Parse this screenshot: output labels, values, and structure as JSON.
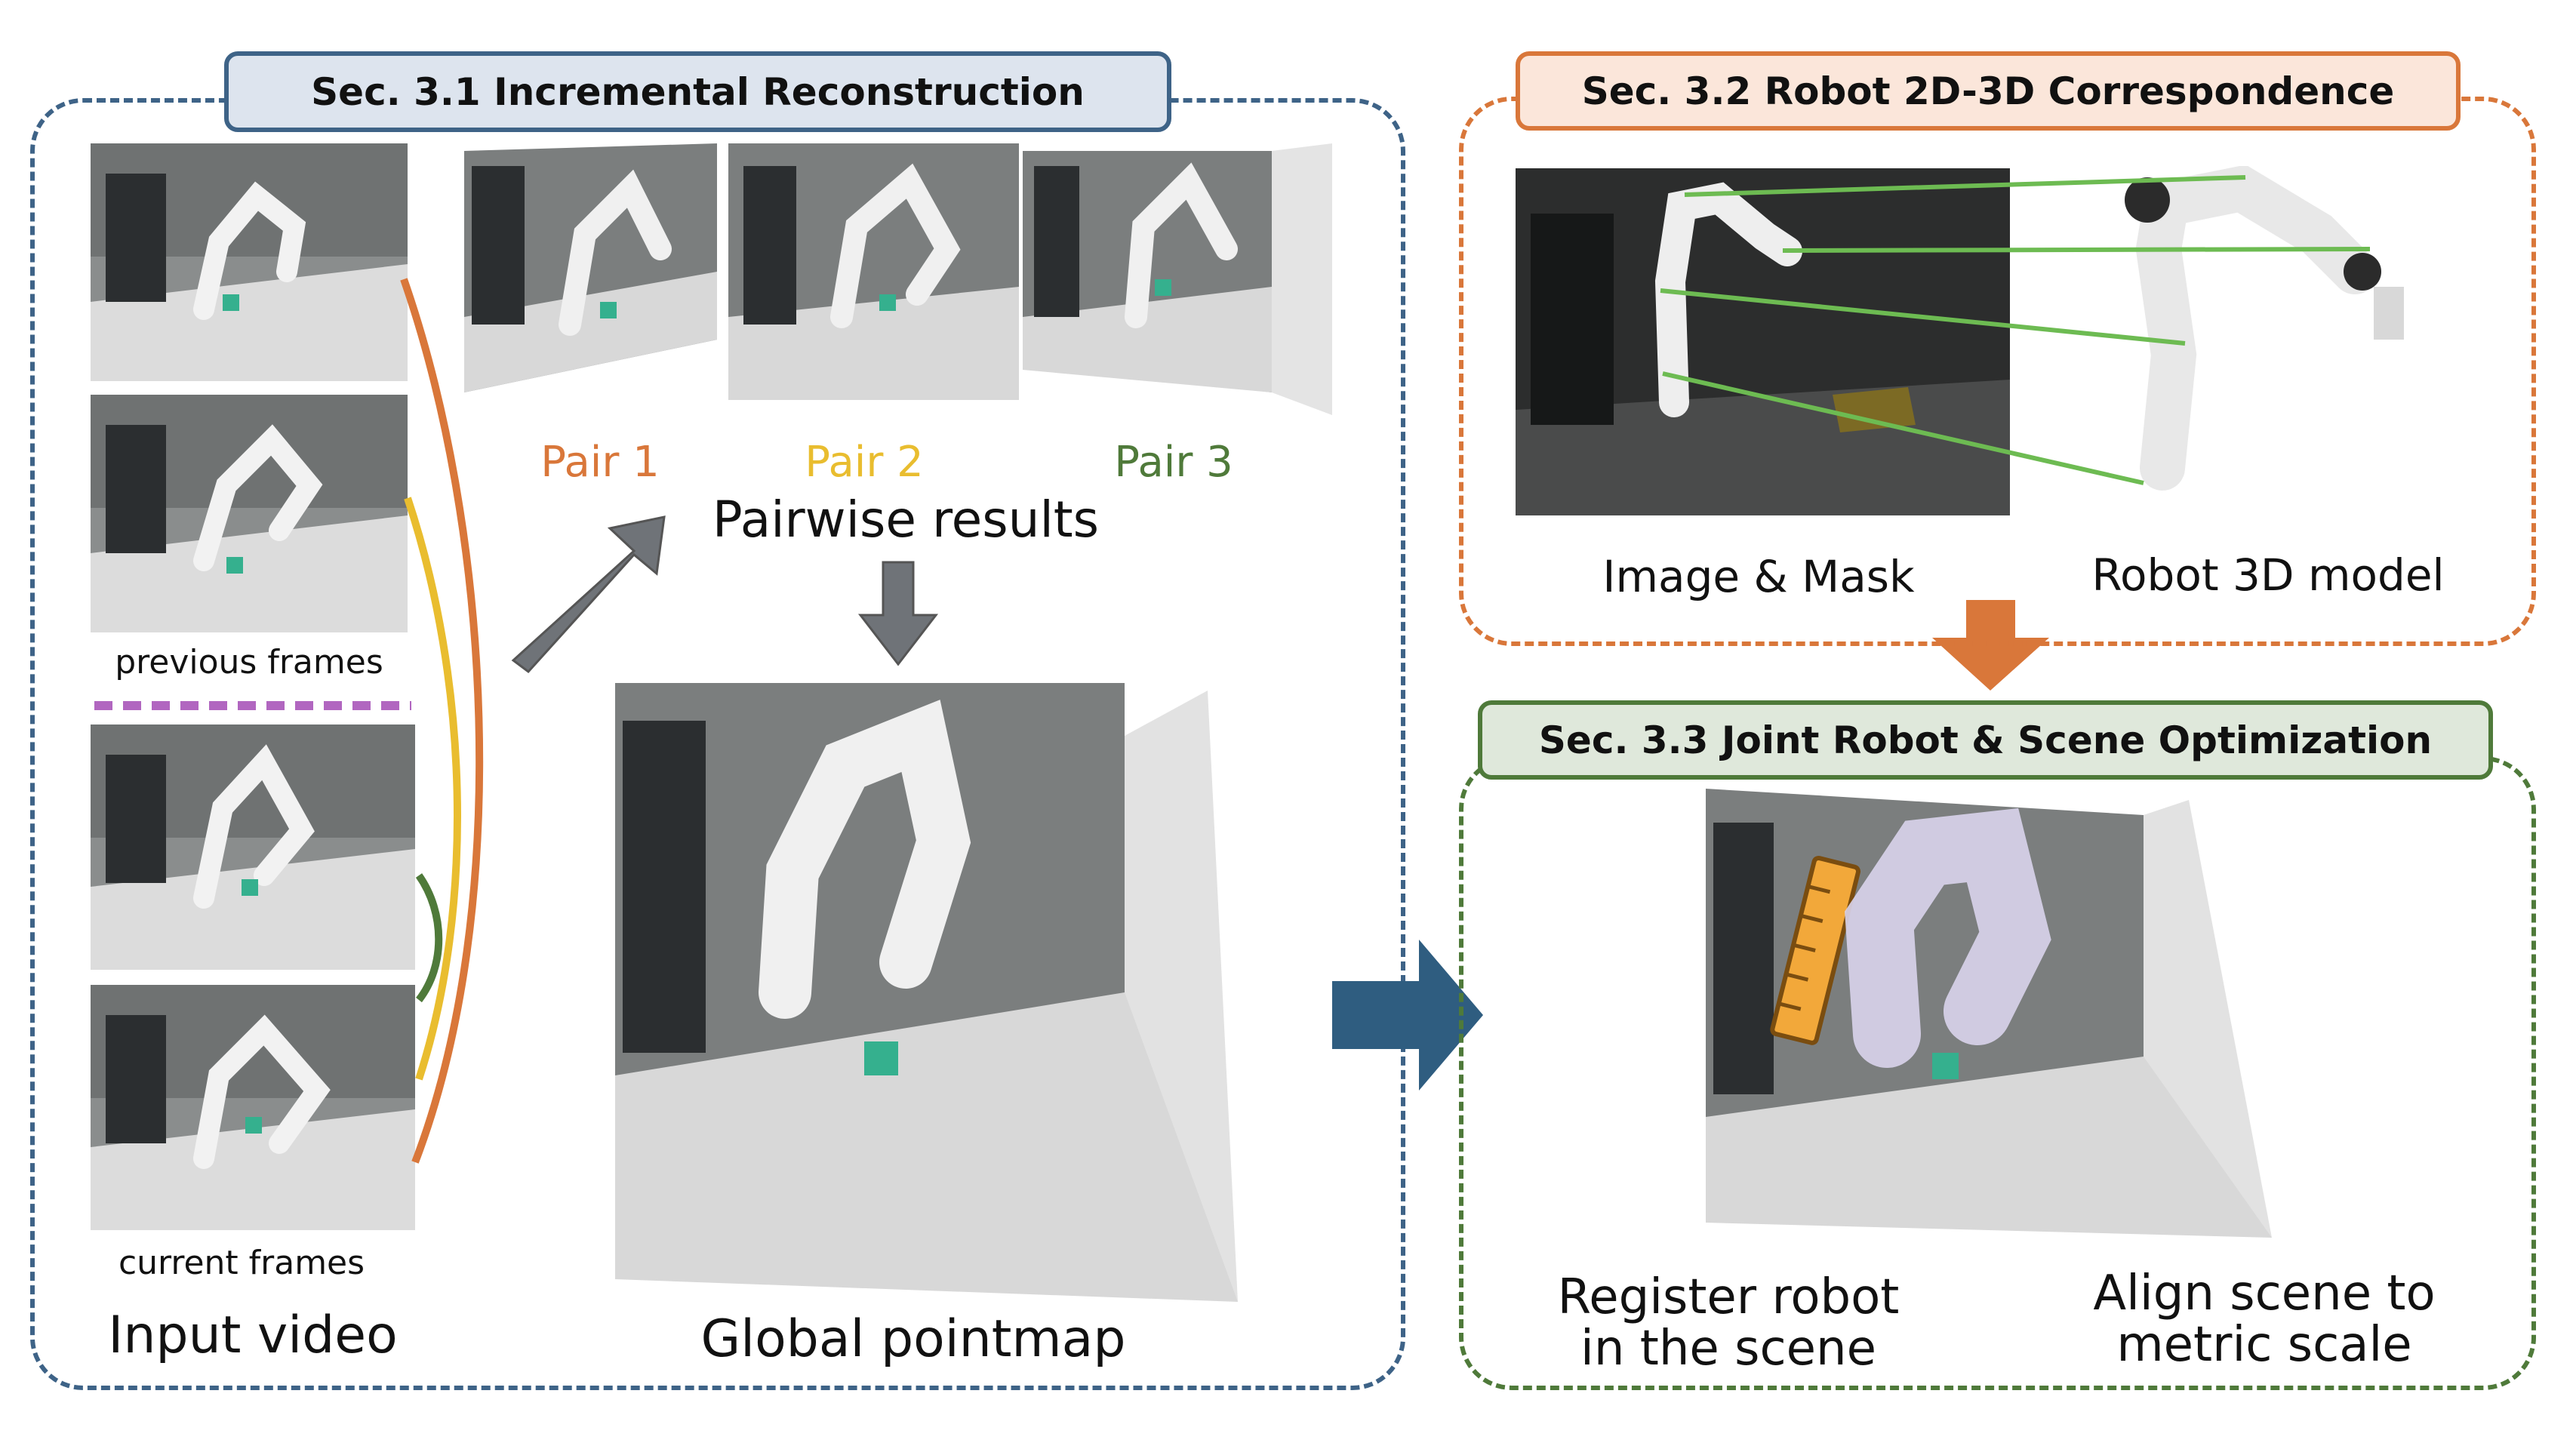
{
  "sections": {
    "s31": {
      "title": "Sec. 3.1 Incremental Reconstruction",
      "color": "#3e6387",
      "header_fill": "#dde4ee"
    },
    "s32": {
      "title": "Sec. 3.2 Robot 2D-3D Correspondence",
      "color": "#d9773a",
      "header_fill": "#fbe6da"
    },
    "s33": {
      "title": "Sec. 3.3 Joint Robot & Scene Optimization",
      "color": "#4f7a3a",
      "header_fill": "#dfe8db"
    }
  },
  "labels": {
    "previous_frames": "previous frames",
    "current_frames": "current frames",
    "input_video": "Input video",
    "pair1": "Pair 1",
    "pair2": "Pair 2",
    "pair3": "Pair 3",
    "pairwise_results": "Pairwise results",
    "global_pointmap": "Global pointmap",
    "image_mask": "Image & Mask",
    "robot_3d_model": "Robot 3D model",
    "register_robot_l1": "Register robot",
    "register_robot_l2": "in the scene",
    "align_scene_l1": "Align scene to",
    "align_scene_l2": "metric scale"
  },
  "colors": {
    "pair1": "#d9773a",
    "pair2": "#e9bd2f",
    "pair3": "#4f7a3a",
    "divider": "#b166c0",
    "arrow_gray": "#6f7378",
    "arrow_blue": "#2f5d80",
    "arrow_orange": "#d9773a",
    "correspondence": "#6dbb52"
  }
}
